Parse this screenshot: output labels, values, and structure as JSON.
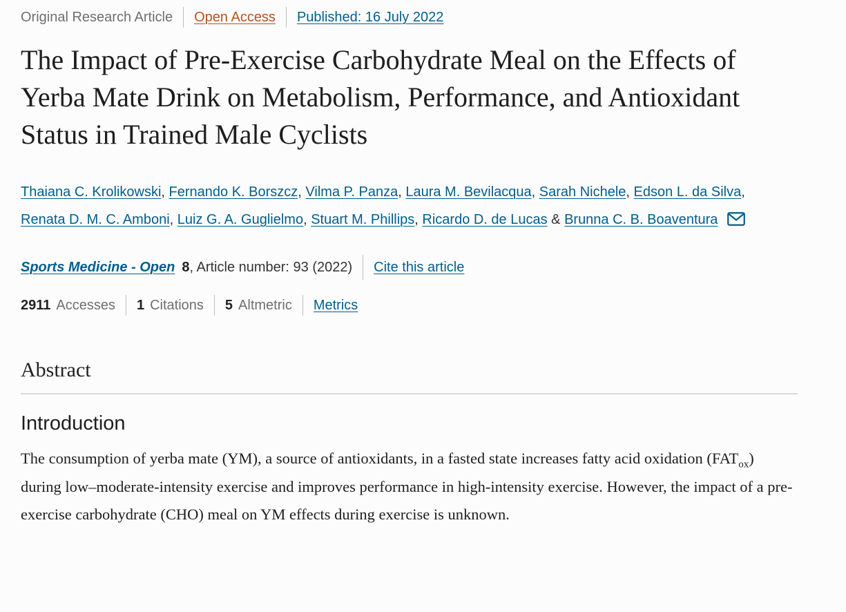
{
  "colors": {
    "link_blue": "#025e8d",
    "open_access_orange": "#b6511d",
    "text_gray": "#6e6e73",
    "text_dark": "#1e1e1e",
    "divider_gray": "#d8d8d8"
  },
  "meta": {
    "article_type": "Original Research Article",
    "open_access_label": "Open Access",
    "published_label": "Published: 16 July 2022"
  },
  "title": "The Impact of Pre-Exercise Carbohydrate Meal on the Effects of Yerba Mate Drink on Metabolism, Performance, and Antioxidant Status in Trained Male Cyclists",
  "authors": {
    "names": [
      "Thaiana C. Krolikowski",
      "Fernando K. Borszcz",
      "Vilma P. Panza",
      "Laura M. Bevilacqua",
      "Sarah Nichele",
      "Edson L. da Silva",
      "Renata D. M. C. Amboni",
      "Luiz G. A. Guglielmo",
      "Stuart M. Phillips",
      "Ricardo D. de Lucas",
      "Brunna C. B. Boaventura"
    ],
    "separator": ", ",
    "last_separator": " & ",
    "email_icon": "envelope-icon"
  },
  "journal": {
    "name": "Sports Medicine - Open",
    "volume": "8",
    "article_info": ", Article number: 93 (2022)",
    "cite_link_label": "Cite this article"
  },
  "metrics": {
    "items": [
      {
        "value": "2911",
        "label": "Accesses"
      },
      {
        "value": "1",
        "label": "Citations"
      },
      {
        "value": "5",
        "label": "Altmetric"
      }
    ],
    "metrics_link_label": "Metrics"
  },
  "abstract": {
    "heading": "Abstract",
    "intro_heading": "Introduction",
    "paragraph": {
      "part1": "The consumption of yerba mate (YM), a source of antioxidants, in a fasted state increases fatty acid oxidation (FAT",
      "sub": "ox",
      "part2": ") during low–moderate-intensity exercise and improves performance in high-intensity exercise. However, the impact of a pre-exercise carbohydrate (CHO) meal on YM effects during exercise is unknown."
    }
  }
}
